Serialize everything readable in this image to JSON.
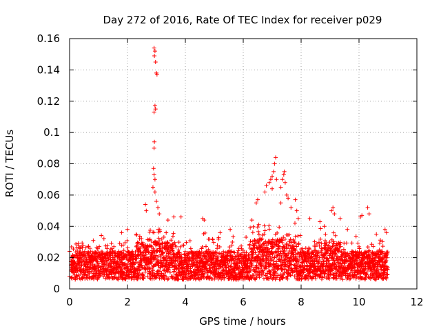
{
  "chart_data": {
    "type": "scatter",
    "title": "Day 272 of 2016, Rate Of TEC Index for receiver p029",
    "xlabel": "GPS time / hours",
    "ylabel": "ROTI / TECUs",
    "xlim": [
      0,
      12
    ],
    "ylim": [
      0,
      0.16
    ],
    "x_ticks": [
      "0",
      "2",
      "4",
      "6",
      "8",
      "10",
      "12"
    ],
    "y_ticks": [
      "0",
      "0.02",
      "0.04",
      "0.06",
      "0.08",
      "0.1",
      "0.12",
      "0.14",
      "0.16"
    ],
    "grid": true,
    "marker": "+",
    "color": "#ff0000",
    "series": [
      {
        "name": "ROTI",
        "points": [
          [
            0.0,
            0.024
          ],
          [
            0.0,
            0.008
          ],
          [
            0.05,
            0.012
          ],
          [
            2.92,
            0.154
          ],
          [
            2.95,
            0.152
          ],
          [
            2.93,
            0.149
          ],
          [
            2.97,
            0.145
          ],
          [
            3.0,
            0.138
          ],
          [
            3.02,
            0.137
          ],
          [
            2.95,
            0.117
          ],
          [
            2.97,
            0.115
          ],
          [
            2.92,
            0.113
          ],
          [
            2.93,
            0.094
          ],
          [
            2.92,
            0.09
          ],
          [
            2.9,
            0.077
          ],
          [
            2.92,
            0.073
          ],
          [
            2.95,
            0.07
          ],
          [
            2.88,
            0.065
          ],
          [
            2.95,
            0.062
          ],
          [
            2.62,
            0.054
          ],
          [
            2.65,
            0.05
          ],
          [
            3.0,
            0.056
          ],
          [
            3.05,
            0.052
          ],
          [
            3.1,
            0.048
          ],
          [
            3.4,
            0.044
          ],
          [
            3.6,
            0.046
          ],
          [
            3.85,
            0.046
          ],
          [
            4.6,
            0.045
          ],
          [
            4.65,
            0.044
          ],
          [
            1.8,
            0.036
          ],
          [
            2.0,
            0.038
          ],
          [
            2.3,
            0.035
          ],
          [
            5.2,
            0.036
          ],
          [
            5.55,
            0.038
          ],
          [
            6.3,
            0.044
          ],
          [
            6.45,
            0.055
          ],
          [
            6.5,
            0.057
          ],
          [
            6.75,
            0.062
          ],
          [
            6.8,
            0.066
          ],
          [
            6.9,
            0.068
          ],
          [
            6.95,
            0.07
          ],
          [
            7.0,
            0.072
          ],
          [
            7.05,
            0.075
          ],
          [
            7.08,
            0.08
          ],
          [
            7.12,
            0.084
          ],
          [
            7.15,
            0.07
          ],
          [
            7.3,
            0.065
          ],
          [
            7.35,
            0.07
          ],
          [
            7.4,
            0.073
          ],
          [
            7.42,
            0.075
          ],
          [
            7.45,
            0.068
          ],
          [
            7.0,
            0.064
          ],
          [
            7.5,
            0.06
          ],
          [
            7.55,
            0.058
          ],
          [
            7.3,
            0.055
          ],
          [
            7.65,
            0.052
          ],
          [
            7.8,
            0.057
          ],
          [
            7.85,
            0.05
          ],
          [
            7.9,
            0.045
          ],
          [
            8.3,
            0.045
          ],
          [
            8.65,
            0.043
          ],
          [
            8.8,
            0.04
          ],
          [
            9.05,
            0.05
          ],
          [
            9.1,
            0.052
          ],
          [
            9.15,
            0.048
          ],
          [
            9.35,
            0.045
          ],
          [
            9.6,
            0.038
          ],
          [
            10.05,
            0.046
          ],
          [
            10.1,
            0.047
          ],
          [
            10.3,
            0.052
          ],
          [
            10.35,
            0.048
          ],
          [
            10.6,
            0.035
          ],
          [
            10.9,
            0.038
          ],
          [
            10.95,
            0.036
          ]
        ]
      }
    ]
  }
}
